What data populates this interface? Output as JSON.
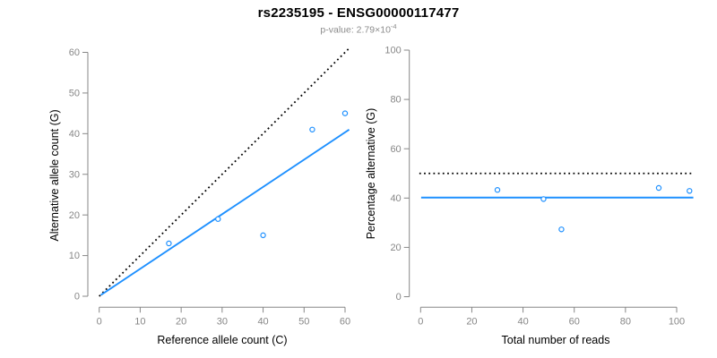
{
  "header": {
    "title": "rs2235195 - ENSG00000117477",
    "p_value_prefix": "p-value: 2.79×10",
    "p_value_exponent": "-4"
  },
  "colors": {
    "accent_blue": "#1E90FF",
    "reference_black": "#000000",
    "axis_gray": "#878787"
  },
  "chart_data": [
    {
      "type": "scatter",
      "name": "allele-counts",
      "xlabel": "Reference allele count (C)",
      "ylabel": "Alternative allele count (G)",
      "xlim": [
        0,
        60
      ],
      "ylim": [
        0,
        60
      ],
      "xticks": [
        0,
        10,
        20,
        30,
        40,
        50,
        60
      ],
      "yticks": [
        0,
        10,
        20,
        30,
        40,
        50,
        60
      ],
      "grid": false,
      "legend": "none",
      "point_color": "#1E90FF",
      "points": [
        [
          17,
          13
        ],
        [
          29,
          19
        ],
        [
          40,
          15
        ],
        [
          52,
          41
        ],
        [
          60,
          45
        ]
      ],
      "lines": [
        {
          "name": "identity-line",
          "style": "dotted",
          "color": "#000000",
          "x": [
            0,
            61
          ],
          "y": [
            0,
            61
          ]
        },
        {
          "name": "fit-line",
          "style": "solid",
          "color": "#1E90FF",
          "x": [
            0.4,
            61
          ],
          "y": [
            0.3,
            41
          ]
        }
      ]
    },
    {
      "type": "scatter",
      "name": "percentage-vs-reads",
      "xlabel": "Total number of reads",
      "ylabel": "Percentage alternative (G)",
      "xlim": [
        0,
        100
      ],
      "ylim": [
        0,
        100
      ],
      "xticks": [
        0,
        20,
        40,
        60,
        80,
        100
      ],
      "yticks": [
        0,
        20,
        40,
        60,
        80,
        100
      ],
      "grid": false,
      "legend": "none",
      "point_color": "#1E90FF",
      "points": [
        [
          30,
          43.3
        ],
        [
          48,
          39.6
        ],
        [
          55,
          27.3
        ],
        [
          93,
          44.1
        ],
        [
          105,
          42.9
        ]
      ],
      "lines": [
        {
          "name": "expected-50pct-line",
          "style": "dotted",
          "color": "#000000",
          "x": [
            -0.5,
            106.5
          ],
          "y": [
            50,
            50
          ]
        },
        {
          "name": "observed-mean-line",
          "style": "solid",
          "color": "#1E90FF",
          "x": [
            0.2,
            106.5
          ],
          "y": [
            40.2,
            40.2
          ]
        }
      ]
    }
  ]
}
